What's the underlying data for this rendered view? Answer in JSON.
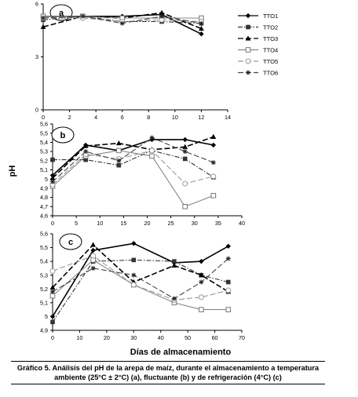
{
  "figure": {
    "ylabel": "pH",
    "xlabel": "Días de almacenamiento",
    "caption_line1": "Gráfico 5. Análisis del pH de la arepa de maíz, durante el almacenamiento a temperatura",
    "caption_line2": "ambiente (25°C ± 2°C) (a), fluctuante (b) y de refrigeración (4°C) (c)"
  },
  "chart_data": [
    {
      "type": "line",
      "panel": "a",
      "xlim": [
        0,
        14
      ],
      "ylim": [
        0,
        6
      ],
      "xticks": [
        "0",
        "2",
        "4",
        "6",
        "8",
        "10",
        "12",
        "14"
      ],
      "yticks": [
        "0",
        "3",
        "6"
      ],
      "grid": false,
      "legend_position": "right",
      "series": [
        {
          "name": "TTO1",
          "marker": "diamond",
          "dash": "solid",
          "x": [
            0,
            3,
            6,
            9,
            12
          ],
          "y": [
            5.3,
            5.3,
            5.3,
            5.4,
            4.3
          ]
        },
        {
          "name": "TTO2",
          "marker": "square",
          "dash": "dashdot",
          "x": [
            0,
            3,
            6,
            9,
            12
          ],
          "y": [
            5.1,
            5.3,
            5.0,
            5.0,
            4.9
          ]
        },
        {
          "name": "TTO3",
          "marker": "triangle",
          "dash": "dash",
          "x": [
            0,
            3,
            6,
            9,
            12
          ],
          "y": [
            4.7,
            5.3,
            5.2,
            5.5,
            4.6
          ]
        },
        {
          "name": "TTO4",
          "marker": "open-square",
          "dash": "solid",
          "x": [
            0,
            3,
            6,
            9,
            12
          ],
          "y": [
            5.3,
            5.3,
            5.2,
            5.2,
            5.2
          ]
        },
        {
          "name": "TTO5",
          "marker": "open-circle",
          "dash": "dash",
          "x": [
            0,
            3,
            6,
            9,
            12
          ],
          "y": [
            5.2,
            5.2,
            5.0,
            5.1,
            5.0
          ]
        },
        {
          "name": "TTO6",
          "marker": "asterisk",
          "dash": "dash",
          "x": [
            0,
            3,
            6,
            9,
            12
          ],
          "y": [
            5.2,
            5.3,
            4.9,
            5.3,
            4.9
          ]
        }
      ]
    },
    {
      "type": "line",
      "panel": "b",
      "xlim": [
        0,
        40
      ],
      "ylim": [
        4.6,
        5.6
      ],
      "xticks": [
        "0",
        "5",
        "10",
        "15",
        "20",
        "25",
        "30",
        "35",
        "40"
      ],
      "yticks": [
        "4,6",
        "4,7",
        "4,8",
        "4,9",
        "5",
        "5,1",
        "5,2",
        "5,3",
        "5,4",
        "5,5",
        "5,6"
      ],
      "grid": false,
      "series": [
        {
          "name": "TTO1",
          "marker": "diamond",
          "dash": "solid",
          "x": [
            0,
            7,
            14,
            21,
            28,
            34
          ],
          "y": [
            5.04,
            5.37,
            5.31,
            5.43,
            5.43,
            5.37
          ]
        },
        {
          "name": "TTO2",
          "marker": "square",
          "dash": "dashdot",
          "x": [
            0,
            7,
            14,
            21,
            28,
            34
          ],
          "y": [
            5.21,
            5.21,
            5.15,
            5.31,
            5.22,
            5.02
          ]
        },
        {
          "name": "TTO3",
          "marker": "triangle",
          "dash": "dash",
          "x": [
            0,
            7,
            14,
            21,
            28,
            34
          ],
          "y": [
            5.01,
            5.36,
            5.39,
            5.32,
            5.35,
            5.46
          ]
        },
        {
          "name": "TTO4",
          "marker": "open-square",
          "dash": "solid",
          "x": [
            0,
            7,
            14,
            21,
            28,
            34
          ],
          "y": [
            4.92,
            5.25,
            5.31,
            5.25,
            4.7,
            4.82
          ]
        },
        {
          "name": "TTO5",
          "marker": "open-circle",
          "dash": "dash",
          "x": [
            0,
            7,
            14,
            21,
            28,
            34
          ],
          "y": [
            4.94,
            5.27,
            5.22,
            5.31,
            4.95,
            5.03
          ]
        },
        {
          "name": "TTO6",
          "marker": "asterisk",
          "dash": "dash",
          "x": [
            0,
            7,
            14,
            21,
            28,
            34
          ],
          "y": [
            4.97,
            5.3,
            5.2,
            5.45,
            5.3,
            5.18
          ]
        }
      ]
    },
    {
      "type": "line",
      "panel": "c",
      "xlim": [
        0,
        70
      ],
      "ylim": [
        4.9,
        5.6
      ],
      "xticks": [
        "0",
        "10",
        "20",
        "30",
        "40",
        "50",
        "60",
        "70"
      ],
      "yticks": [
        "4,9",
        "5",
        "5,1",
        "5,2",
        "5,3",
        "5,4",
        "5,5",
        "5,6"
      ],
      "grid": false,
      "series": [
        {
          "name": "TTO1",
          "marker": "diamond",
          "dash": "solid",
          "x": [
            0,
            15,
            30,
            45,
            55,
            65
          ],
          "y": [
            5.0,
            5.48,
            5.53,
            5.39,
            5.4,
            5.51
          ]
        },
        {
          "name": "TTO2",
          "marker": "square",
          "dash": "dashdot",
          "x": [
            0,
            15,
            30,
            45,
            55,
            65
          ],
          "y": [
            4.96,
            5.4,
            5.41,
            5.4,
            5.3,
            5.25
          ]
        },
        {
          "name": "TTO3",
          "marker": "triangle",
          "dash": "dash",
          "x": [
            0,
            15,
            30,
            45,
            55,
            65
          ],
          "y": [
            5.21,
            5.52,
            5.25,
            5.37,
            5.3,
            5.18
          ]
        },
        {
          "name": "TTO4",
          "marker": "open-square",
          "dash": "solid",
          "x": [
            0,
            15,
            30,
            45,
            55,
            65
          ],
          "y": [
            5.15,
            5.41,
            5.23,
            5.1,
            5.05,
            5.05
          ]
        },
        {
          "name": "TTO5",
          "marker": "open-circle",
          "dash": "dash",
          "x": [
            0,
            15,
            30,
            45,
            55,
            65
          ],
          "y": [
            5.33,
            5.44,
            5.23,
            5.12,
            5.14,
            5.19
          ]
        },
        {
          "name": "TTO6",
          "marker": "asterisk",
          "dash": "dash",
          "x": [
            0,
            15,
            30,
            45,
            55,
            65
          ],
          "y": [
            5.18,
            5.35,
            5.3,
            5.13,
            5.25,
            5.42
          ]
        }
      ]
    }
  ]
}
